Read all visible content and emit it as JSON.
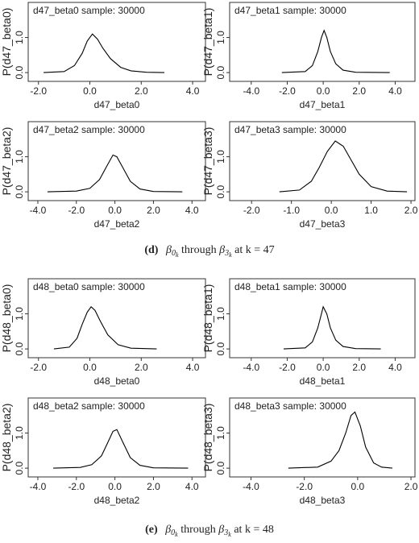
{
  "chart_data": [
    {
      "type": "line",
      "title": "d47_beta0 sample: 30000",
      "x_label": "d47_beta0",
      "y_label": "P(d47_beta0)",
      "color": "#000000",
      "x": [
        -1.8,
        -1.0,
        -0.6,
        -0.3,
        -0.1,
        0.1,
        0.3,
        0.5,
        0.8,
        1.2,
        1.6,
        2.2,
        2.9
      ],
      "values": [
        0,
        0.03,
        0.2,
        0.55,
        0.9,
        1.1,
        0.95,
        0.7,
        0.4,
        0.15,
        0.05,
        0.01,
        0
      ],
      "xlim": [
        -2.4,
        4.5
      ],
      "ylim": [
        -0.25,
        2.0
      ],
      "xticks": [
        {
          "value": -2,
          "label": "-2.0"
        },
        {
          "value": 0,
          "label": "0.0"
        },
        {
          "value": 2,
          "label": "2.0"
        },
        {
          "value": 4,
          "label": "4.0"
        }
      ],
      "yticks": [
        {
          "value": 0,
          "label": "0.0"
        },
        {
          "value": 1,
          "label": "1.0"
        }
      ]
    },
    {
      "type": "line",
      "title": "d47_beta1 sample: 30000",
      "x_label": "d47_beta1",
      "y_label": "P(d47_beta1)",
      "color": "#000000",
      "x": [
        -2.3,
        -1.0,
        -0.6,
        -0.3,
        -0.1,
        0.05,
        0.2,
        0.4,
        0.7,
        1.1,
        1.8,
        3.7
      ],
      "values": [
        0,
        0.03,
        0.2,
        0.6,
        1.0,
        1.2,
        1.0,
        0.6,
        0.25,
        0.07,
        0.01,
        0
      ],
      "xlim": [
        -5.2,
        5.1
      ],
      "ylim": [
        -0.25,
        2.0
      ],
      "xticks": [
        {
          "value": -4,
          "label": "-4.0"
        },
        {
          "value": -2,
          "label": "-2.0"
        },
        {
          "value": 0,
          "label": "0.0"
        },
        {
          "value": 2,
          "label": "2.0"
        },
        {
          "value": 4,
          "label": "4.0"
        }
      ],
      "yticks": [
        {
          "value": 0,
          "label": "0.0"
        },
        {
          "value": 1,
          "label": "1.0"
        }
      ]
    },
    {
      "type": "line",
      "title": "d47_beta2 sample: 30000",
      "x_label": "d47_beta2",
      "y_label": "P(d47_beta2)",
      "color": "#000000",
      "x": [
        -3.5,
        -2.0,
        -1.3,
        -0.8,
        -0.4,
        -0.1,
        0.1,
        0.4,
        0.8,
        1.3,
        2.0,
        3.5
      ],
      "values": [
        0,
        0.02,
        0.1,
        0.35,
        0.75,
        1.05,
        1.0,
        0.7,
        0.3,
        0.08,
        0.01,
        0
      ],
      "xlim": [
        -4.5,
        4.7
      ],
      "ylim": [
        -0.25,
        2.0
      ],
      "xticks": [
        {
          "value": -4,
          "label": "-4.0"
        },
        {
          "value": -2,
          "label": "-2.0"
        },
        {
          "value": 0,
          "label": "0.0"
        },
        {
          "value": 2,
          "label": "2.0"
        },
        {
          "value": 4,
          "label": "4.0"
        }
      ],
      "yticks": [
        {
          "value": 0,
          "label": "0.0"
        },
        {
          "value": 1,
          "label": "1.0"
        }
      ]
    },
    {
      "type": "line",
      "title": "d47_beta3 sample: 30000",
      "x_label": "d47_beta3",
      "y_label": "P(d47_beta3)",
      "color": "#000000",
      "x": [
        -1.3,
        -0.8,
        -0.5,
        -0.3,
        -0.1,
        0.1,
        0.3,
        0.5,
        0.7,
        1.0,
        1.4,
        1.9
      ],
      "values": [
        0,
        0.05,
        0.3,
        0.7,
        1.15,
        1.45,
        1.3,
        0.9,
        0.5,
        0.15,
        0.02,
        0
      ],
      "xlim": [
        -2.55,
        2.1
      ],
      "ylim": [
        -0.25,
        2.0
      ],
      "xticks": [
        {
          "value": -2,
          "label": "-2.0"
        },
        {
          "value": -1,
          "label": "-1.0"
        },
        {
          "value": 0,
          "label": "0.0"
        },
        {
          "value": 1,
          "label": "1.0"
        },
        {
          "value": 2,
          "label": "2.0"
        }
      ],
      "yticks": [
        {
          "value": 0,
          "label": "0.0"
        },
        {
          "value": 1,
          "label": "1.0"
        }
      ]
    },
    {
      "type": "line",
      "title": "d48_beta0 sample: 30000",
      "x_label": "d48_beta0",
      "y_label": "P(d48_beta0)",
      "color": "#000000",
      "x": [
        -1.4,
        -0.8,
        -0.5,
        -0.3,
        -0.1,
        0.05,
        0.2,
        0.4,
        0.7,
        1.1,
        1.6,
        2.6
      ],
      "values": [
        0,
        0.05,
        0.3,
        0.7,
        1.05,
        1.2,
        1.1,
        0.8,
        0.4,
        0.12,
        0.02,
        0
      ],
      "xlim": [
        -2.4,
        4.5
      ],
      "ylim": [
        -0.25,
        2.0
      ],
      "xticks": [
        {
          "value": -2,
          "label": "-2.0"
        },
        {
          "value": 0,
          "label": "0.0"
        },
        {
          "value": 2,
          "label": "2.0"
        },
        {
          "value": 4,
          "label": "4.0"
        }
      ],
      "yticks": [
        {
          "value": 0,
          "label": "0.0"
        },
        {
          "value": 1,
          "label": "1.0"
        }
      ]
    },
    {
      "type": "line",
      "title": "d48_beta1 sample: 30000",
      "x_label": "d48_beta1",
      "y_label": "P(d48_beta1)",
      "color": "#000000",
      "x": [
        -2.2,
        -1.0,
        -0.6,
        -0.3,
        -0.1,
        0.0,
        0.2,
        0.4,
        0.7,
        1.1,
        1.8,
        3.2
      ],
      "values": [
        0,
        0.03,
        0.2,
        0.6,
        1.0,
        1.2,
        1.0,
        0.6,
        0.25,
        0.07,
        0.01,
        0
      ],
      "xlim": [
        -5.2,
        5.1
      ],
      "ylim": [
        -0.25,
        2.0
      ],
      "xticks": [
        {
          "value": -4,
          "label": "-4.0"
        },
        {
          "value": -2,
          "label": "-2.0"
        },
        {
          "value": 0,
          "label": "0.0"
        },
        {
          "value": 2,
          "label": "2.0"
        },
        {
          "value": 4,
          "label": "4.0"
        }
      ],
      "yticks": [
        {
          "value": 0,
          "label": "0.0"
        },
        {
          "value": 1,
          "label": "1.0"
        }
      ]
    },
    {
      "type": "line",
      "title": "d48_beta2 sample: 30000",
      "x_label": "d48_beta2",
      "y_label": "P(d48_beta2)",
      "color": "#000000",
      "x": [
        -3.2,
        -1.8,
        -1.2,
        -0.7,
        -0.35,
        -0.1,
        0.1,
        0.4,
        0.8,
        1.3,
        2.0,
        3.8
      ],
      "values": [
        0,
        0.02,
        0.1,
        0.35,
        0.75,
        1.05,
        1.1,
        0.75,
        0.3,
        0.08,
        0.01,
        0
      ],
      "xlim": [
        -4.5,
        4.7
      ],
      "ylim": [
        -0.25,
        2.0
      ],
      "xticks": [
        {
          "value": -4,
          "label": "-4.0"
        },
        {
          "value": -2,
          "label": "-2.0"
        },
        {
          "value": 0,
          "label": "0.0"
        },
        {
          "value": 2,
          "label": "2.0"
        },
        {
          "value": 4,
          "label": "4.0"
        }
      ],
      "yticks": [
        {
          "value": 0,
          "label": "0.0"
        },
        {
          "value": 1,
          "label": "1.0"
        }
      ]
    },
    {
      "type": "line",
      "title": "d48_beta3 sample: 30000",
      "x_label": "d48_beta3",
      "y_label": "P(d48_beta3)",
      "color": "#000000",
      "x": [
        -2.6,
        -1.5,
        -1.0,
        -0.7,
        -0.45,
        -0.25,
        -0.1,
        0.1,
        0.3,
        0.6,
        0.9,
        1.3
      ],
      "values": [
        0,
        0.03,
        0.2,
        0.5,
        1.0,
        1.5,
        1.6,
        1.2,
        0.6,
        0.15,
        0.03,
        0
      ],
      "xlim": [
        -4.8,
        2.15
      ],
      "ylim": [
        -0.25,
        2.0
      ],
      "xticks": [
        {
          "value": -4,
          "label": "-4.0"
        },
        {
          "value": -2,
          "label": "-2.0"
        },
        {
          "value": 0,
          "label": "0.0"
        },
        {
          "value": 2,
          "label": "2.0"
        }
      ],
      "yticks": [
        {
          "value": 0,
          "label": "0.0"
        },
        {
          "value": 1,
          "label": "1.0"
        }
      ]
    }
  ],
  "captions": [
    {
      "label": "(d)",
      "sym1": "β",
      "sub1": "0",
      "subsub1": "k",
      "mid": "through",
      "sym2": "β",
      "sub2": "3",
      "subsub2": "k",
      "tail": "at k = 47"
    },
    {
      "label": "(e)",
      "sym1": "β",
      "sub1": "0",
      "subsub1": "k",
      "mid": "through",
      "sym2": "β",
      "sub2": "3",
      "subsub2": "k",
      "tail": "at k = 48"
    }
  ]
}
